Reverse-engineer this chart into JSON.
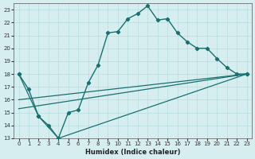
{
  "xlabel": "Humidex (Indice chaleur)",
  "bg_color": "#d6eef0",
  "grid_color": "#b8dde0",
  "line_color": "#1a7070",
  "xlim": [
    -0.5,
    23.5
  ],
  "ylim": [
    13,
    23.5
  ],
  "xticks": [
    0,
    1,
    2,
    3,
    4,
    5,
    6,
    7,
    8,
    9,
    10,
    11,
    12,
    13,
    14,
    15,
    16,
    17,
    18,
    19,
    20,
    21,
    22,
    23
  ],
  "yticks": [
    13,
    14,
    15,
    16,
    17,
    18,
    19,
    20,
    21,
    22,
    23
  ],
  "line1_x": [
    0,
    1,
    2,
    3,
    4,
    5,
    6,
    7,
    8,
    9,
    10,
    11,
    12,
    13,
    14,
    15,
    16,
    17,
    18,
    19,
    20,
    21,
    22,
    23
  ],
  "line1_y": [
    18,
    16.8,
    14.7,
    14.0,
    13.0,
    15.0,
    15.2,
    17.3,
    18.7,
    21.2,
    21.3,
    22.3,
    22.7,
    23.3,
    22.2,
    22.3,
    21.2,
    20.5,
    20.0,
    20.0,
    19.2,
    18.5,
    18.0,
    18.0
  ],
  "line2_x": [
    0,
    2,
    4,
    23
  ],
  "line2_y": [
    18,
    14.7,
    13.0,
    18.0
  ],
  "line3_x": [
    0,
    23
  ],
  "line3_y": [
    15.3,
    18.0
  ],
  "line4_x": [
    0,
    23
  ],
  "line4_y": [
    16.0,
    18.0
  ]
}
